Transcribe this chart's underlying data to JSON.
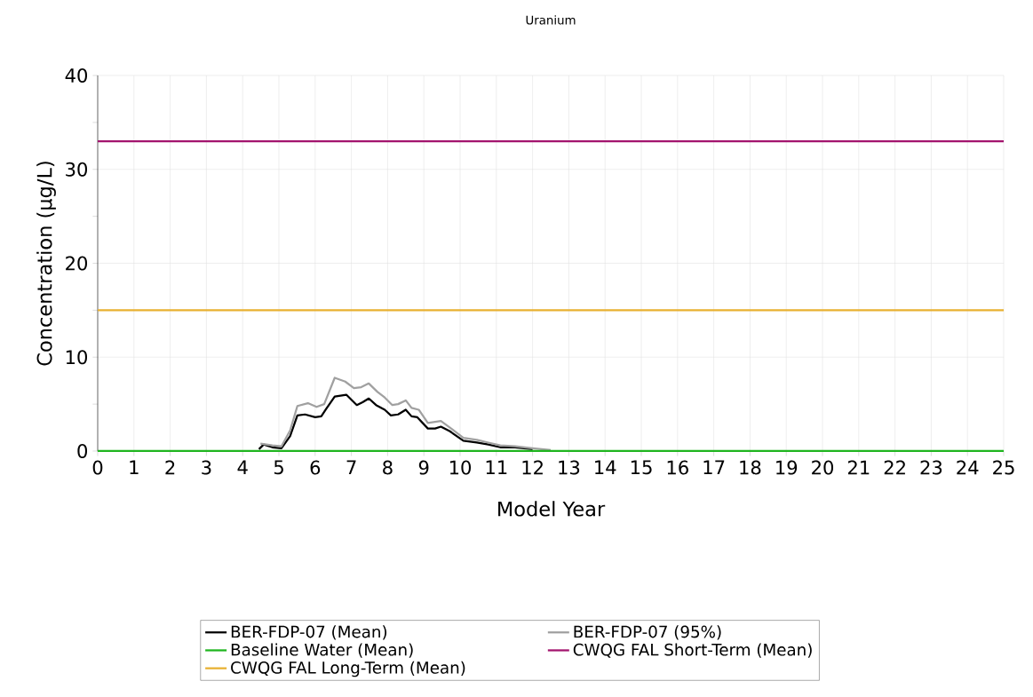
{
  "chart_data": {
    "type": "line",
    "title": "Uranium",
    "xlabel": "Model Year",
    "ylabel": "Concentration (µg/L)",
    "xlim": [
      0,
      25
    ],
    "ylim": [
      0,
      40
    ],
    "xticks": [
      0,
      1,
      2,
      3,
      4,
      5,
      6,
      7,
      8,
      9,
      10,
      11,
      12,
      13,
      14,
      15,
      16,
      17,
      18,
      19,
      20,
      21,
      22,
      23,
      24,
      25
    ],
    "yticks": [
      0,
      {
        "value": 5,
        "label": null
      },
      10,
      {
        "value": 15,
        "label": null
      },
      20,
      {
        "value": 25,
        "label": null
      },
      30,
      {
        "value": 35,
        "label": null
      },
      40
    ],
    "grid": true,
    "legend": "bottom",
    "series": [
      {
        "name": "BER-FDP-07 (Mean)",
        "color": "#000000",
        "x": [
          4.45,
          4.58,
          4.82,
          5.07,
          5.31,
          5.51,
          5.72,
          6.0,
          6.17,
          6.29,
          6.54,
          6.86,
          7.15,
          7.31,
          7.48,
          7.68,
          7.92,
          8.09,
          8.29,
          8.5,
          8.66,
          8.82,
          9.11,
          9.31,
          9.47,
          9.72,
          10.09,
          10.46,
          10.78,
          11.11,
          11.52,
          12.0
        ],
        "values": [
          0.2,
          0.7,
          0.4,
          0.3,
          1.6,
          3.8,
          3.9,
          3.6,
          3.7,
          4.4,
          5.8,
          6.0,
          4.9,
          5.2,
          5.6,
          4.9,
          4.4,
          3.8,
          3.9,
          4.4,
          3.7,
          3.6,
          2.4,
          2.4,
          2.6,
          2.1,
          1.1,
          0.9,
          0.7,
          0.4,
          0.4,
          0.2
        ]
      },
      {
        "name": "BER-FDP-07 (95%)",
        "color": "#a0a0a0",
        "x": [
          4.49,
          4.82,
          5.07,
          5.31,
          5.51,
          5.8,
          6.04,
          6.25,
          6.54,
          6.83,
          7.07,
          7.27,
          7.48,
          7.72,
          7.92,
          8.13,
          8.29,
          8.5,
          8.66,
          8.86,
          9.11,
          9.47,
          9.72,
          10.09,
          10.46,
          10.78,
          11.11,
          11.52,
          12.0,
          12.5
        ],
        "values": [
          0.8,
          0.6,
          0.5,
          2.2,
          4.8,
          5.1,
          4.7,
          5.0,
          7.8,
          7.4,
          6.7,
          6.8,
          7.2,
          6.3,
          5.7,
          4.9,
          5.0,
          5.4,
          4.6,
          4.4,
          3.0,
          3.2,
          2.5,
          1.4,
          1.2,
          0.9,
          0.6,
          0.5,
          0.3,
          0.1
        ]
      },
      {
        "name": "Baseline Water (Mean)",
        "color": "#1fb51f",
        "x": [
          0,
          25
        ],
        "values": [
          0,
          0
        ]
      },
      {
        "name": "CWQG FAL Short-Term (Mean)",
        "color": "#a3146e",
        "x": [
          0,
          25
        ],
        "values": [
          33,
          33
        ]
      },
      {
        "name": "CWQG FAL Long-Term (Mean)",
        "color": "#e8b030",
        "x": [
          0,
          25
        ],
        "values": [
          15,
          15
        ]
      }
    ]
  }
}
